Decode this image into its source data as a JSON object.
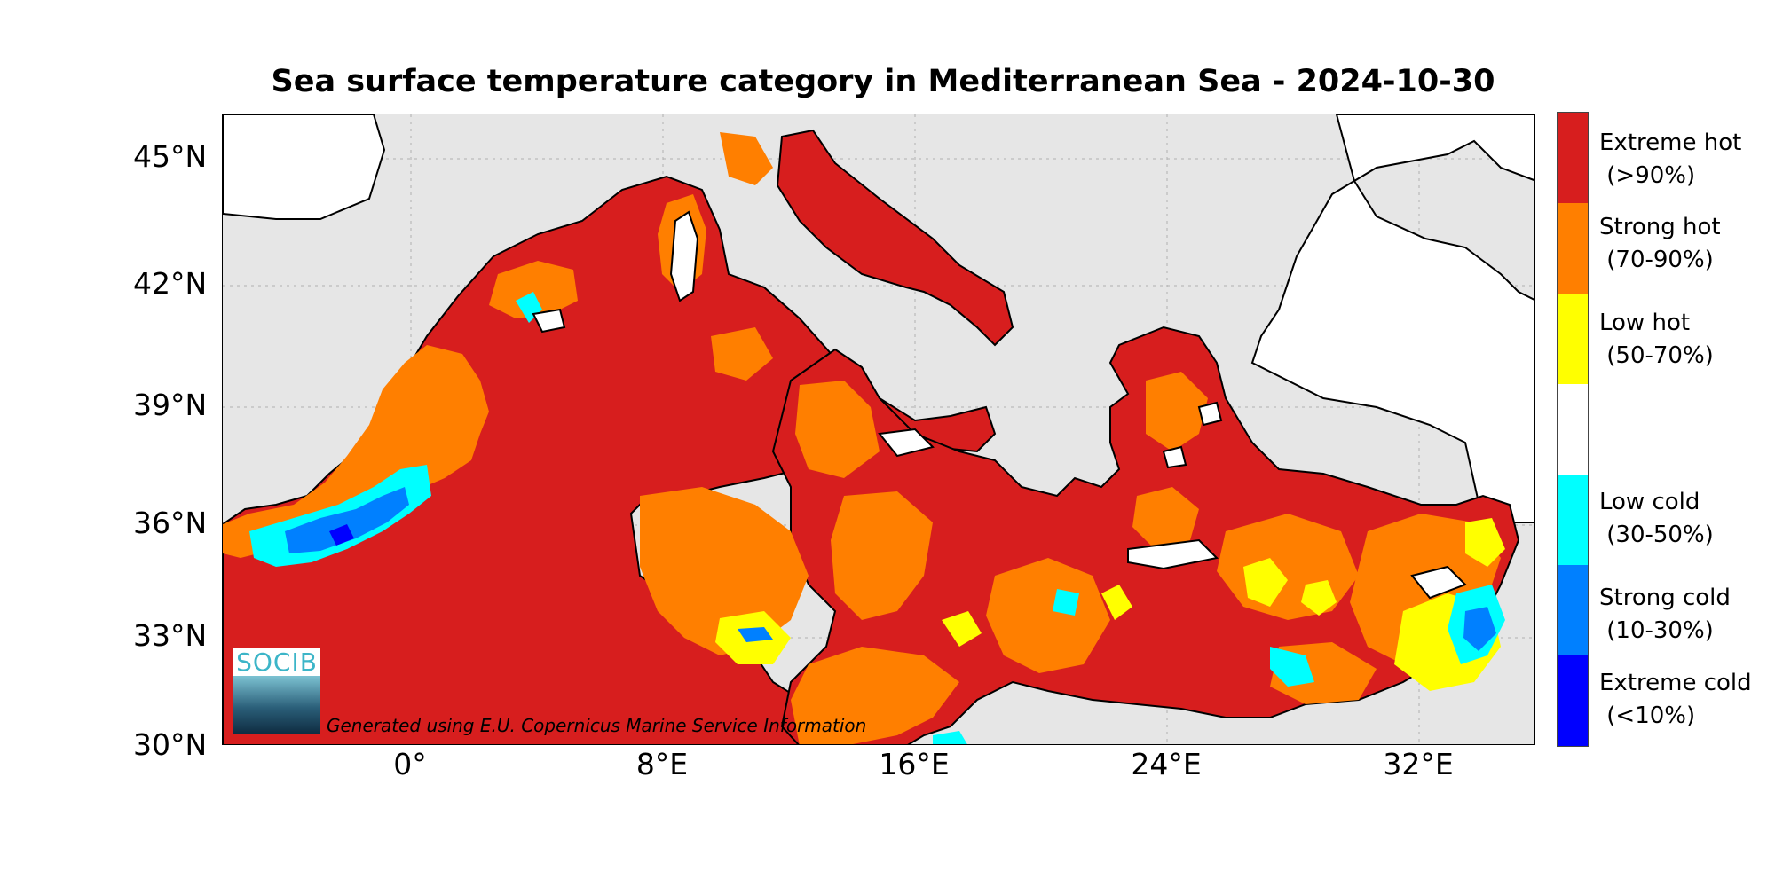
{
  "title": "Sea surface temperature category in Mediterranean Sea - 2024-10-30",
  "map": {
    "region": "Mediterranean Sea",
    "date": "2024-10-30",
    "lon_range": [
      -6,
      36
    ],
    "lat_range": [
      30,
      46
    ],
    "grid": true
  },
  "axes": {
    "y_ticks": [
      "45°N",
      "42°N",
      "39°N",
      "36°N",
      "33°N",
      "30°N"
    ],
    "x_ticks": [
      "0°",
      "8°E",
      "16°E",
      "24°E",
      "32°E"
    ]
  },
  "legend": {
    "items": [
      {
        "line1": "Extreme hot",
        "line2": " (>90%)",
        "color": "#d71e1e"
      },
      {
        "line1": "Strong hot",
        "line2": " (70-90%)",
        "color": "#ff7f00"
      },
      {
        "line1": "Low hot",
        "line2": " (50-70%)",
        "color": "#ffff00"
      },
      {
        "line1": "",
        "line2": "",
        "color": "#ffffff"
      },
      {
        "line1": "Low cold",
        "line2": " (30-50%)",
        "color": "#00ffff"
      },
      {
        "line1": "Strong cold",
        "line2": " (10-30%)",
        "color": "#0080ff"
      },
      {
        "line1": "Extreme cold",
        "line2": " (<10%)",
        "color": "#0000ff"
      }
    ]
  },
  "colors": {
    "sea_background": "#e6e6e6",
    "land": "#ffffff",
    "extreme_hot": "#d71e1e",
    "strong_hot": "#ff7f00",
    "low_hot": "#ffff00",
    "low_cold": "#00ffff",
    "strong_cold": "#0080ff",
    "extreme_cold": "#0000ff"
  },
  "logo": {
    "text": "SOCIB"
  },
  "credit": "Generated using E.U. Copernicus Marine Service Information"
}
